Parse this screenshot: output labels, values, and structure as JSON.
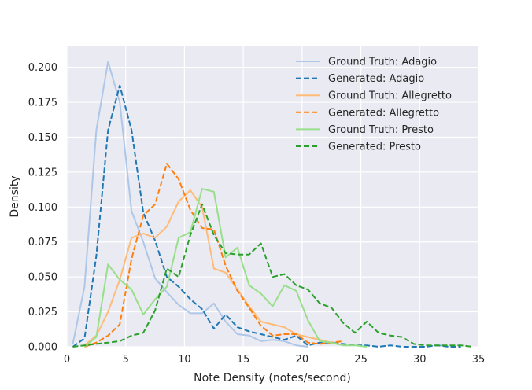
{
  "chart_data": {
    "type": "line",
    "title": "",
    "xlabel": "Note Density (notes/second)",
    "ylabel": "Density",
    "xlim": [
      0,
      35
    ],
    "ylim": [
      0,
      0.215
    ],
    "xticks": [
      "0",
      "5",
      "10",
      "15",
      "20",
      "25",
      "30",
      "35"
    ],
    "yticks": [
      "0.000",
      "0.025",
      "0.050",
      "0.075",
      "0.100",
      "0.125",
      "0.150",
      "0.175",
      "0.200"
    ],
    "grid": true,
    "legend_position": "top-right",
    "series": [
      {
        "name": "Ground Truth: Adagio",
        "color": "#aec7e8",
        "dash": false,
        "x": [
          0.5,
          1.5,
          2.5,
          3.5,
          4.5,
          5.5,
          6.5,
          7.5,
          8.5,
          9.5,
          10.5,
          11.5,
          12.5,
          13.5,
          14.5,
          15.5,
          16.5,
          17.5,
          18.5,
          19.5,
          20.5
        ],
        "y": [
          0.002,
          0.043,
          0.155,
          0.204,
          0.175,
          0.097,
          0.075,
          0.049,
          0.039,
          0.03,
          0.024,
          0.024,
          0.031,
          0.018,
          0.009,
          0.008,
          0.004,
          0.005,
          0.004,
          0.001,
          0.0
        ]
      },
      {
        "name": "Generated: Adagio",
        "color": "#1f77b4",
        "dash": true,
        "x": [
          0.5,
          1.5,
          2.5,
          3.5,
          4.5,
          5.5,
          6.5,
          7.5,
          8.5,
          9.5,
          10.5,
          11.5,
          12.5,
          13.5,
          14.5,
          15.5,
          16.5,
          17.5,
          18.5,
          19.5,
          20.5,
          21.5,
          22.5,
          23.5,
          24.5,
          25.5,
          26.5,
          27.5,
          28.5,
          29.5,
          30.5,
          31.5,
          32.5,
          33.5
        ],
        "y": [
          0.0,
          0.006,
          0.065,
          0.155,
          0.187,
          0.155,
          0.096,
          0.076,
          0.05,
          0.043,
          0.034,
          0.027,
          0.013,
          0.023,
          0.014,
          0.011,
          0.009,
          0.007,
          0.005,
          0.008,
          0.001,
          0.003,
          0.003,
          0.002,
          0.001,
          0.001,
          0.0,
          0.001,
          0.0,
          0.0,
          0.0,
          0.001,
          0.0,
          0.0
        ]
      },
      {
        "name": "Ground Truth: Allegretto",
        "color": "#ffbb78",
        "dash": false,
        "x": [
          1.5,
          2.5,
          3.5,
          4.5,
          5.5,
          6.5,
          7.5,
          8.5,
          9.5,
          10.5,
          11.5,
          12.5,
          13.5,
          14.5,
          15.5,
          16.5,
          17.5,
          18.5,
          19.5,
          20.5,
          21.5,
          22.5,
          23.5
        ],
        "y": [
          0.001,
          0.008,
          0.025,
          0.048,
          0.078,
          0.081,
          0.078,
          0.086,
          0.104,
          0.112,
          0.1,
          0.056,
          0.053,
          0.041,
          0.029,
          0.018,
          0.016,
          0.014,
          0.009,
          0.007,
          0.005,
          0.003,
          0.001
        ]
      },
      {
        "name": "Generated: Allegretto",
        "color": "#ff7f0e",
        "dash": true,
        "x": [
          1.5,
          2.5,
          3.5,
          4.5,
          5.5,
          6.5,
          7.5,
          8.5,
          9.5,
          10.5,
          11.5,
          12.5,
          13.5,
          14.5,
          15.5,
          16.5,
          17.5,
          18.5,
          19.5,
          20.5,
          21.5,
          22.5,
          23.5
        ],
        "y": [
          0.0,
          0.003,
          0.008,
          0.016,
          0.063,
          0.094,
          0.102,
          0.131,
          0.12,
          0.098,
          0.085,
          0.084,
          0.058,
          0.04,
          0.028,
          0.015,
          0.008,
          0.009,
          0.009,
          0.003,
          0.002,
          0.003,
          0.004
        ]
      },
      {
        "name": "Ground Truth: Presto",
        "color": "#98df8a",
        "dash": false,
        "x": [
          1.5,
          2.5,
          3.5,
          4.5,
          5.5,
          6.5,
          7.5,
          8.5,
          9.5,
          10.5,
          11.5,
          12.5,
          13.5,
          14.5,
          15.5,
          16.5,
          17.5,
          18.5,
          19.5,
          20.5,
          21.5,
          22.5,
          23.5,
          24.5,
          25.5
        ],
        "y": [
          0.0,
          0.007,
          0.059,
          0.048,
          0.041,
          0.023,
          0.034,
          0.043,
          0.078,
          0.082,
          0.113,
          0.111,
          0.064,
          0.071,
          0.044,
          0.038,
          0.029,
          0.044,
          0.04,
          0.019,
          0.004,
          0.003,
          0.001,
          0.001,
          0.0
        ]
      },
      {
        "name": "Generated: Presto",
        "color": "#2ca02c",
        "dash": true,
        "x": [
          0.5,
          1.5,
          2.5,
          3.5,
          4.5,
          5.5,
          6.5,
          7.5,
          8.5,
          9.5,
          10.5,
          11.5,
          12.5,
          13.5,
          14.5,
          15.5,
          16.5,
          17.5,
          18.5,
          19.5,
          20.5,
          21.5,
          22.5,
          23.5,
          24.5,
          25.5,
          26.5,
          27.5,
          28.5,
          29.5,
          30.5,
          31.5,
          32.5,
          33.5,
          34.5
        ],
        "y": [
          0.0,
          0.001,
          0.002,
          0.003,
          0.004,
          0.008,
          0.01,
          0.026,
          0.056,
          0.05,
          0.08,
          0.102,
          0.08,
          0.067,
          0.066,
          0.066,
          0.074,
          0.05,
          0.052,
          0.044,
          0.041,
          0.031,
          0.028,
          0.017,
          0.01,
          0.018,
          0.01,
          0.008,
          0.007,
          0.002,
          0.001,
          0.001,
          0.001,
          0.001,
          0.0
        ]
      }
    ]
  }
}
